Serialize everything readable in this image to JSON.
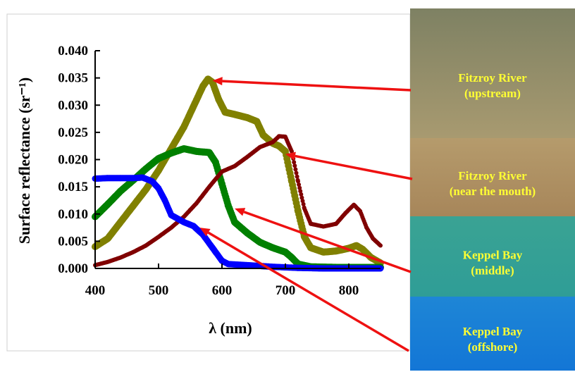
{
  "chart_data": {
    "type": "scatter",
    "xlabel": "λ (nm)",
    "ylabel": "Surface reflectance (sr⁻¹)",
    "xlim": [
      400,
      850
    ],
    "ylim": [
      0,
      0.04
    ],
    "x_ticks": [
      "400",
      "500",
      "600",
      "700",
      "800"
    ],
    "y_ticks": [
      "0.000",
      "0.005",
      "0.010",
      "0.015",
      "0.020",
      "0.025",
      "0.030",
      "0.035",
      "0.040"
    ],
    "grid": false,
    "series": [
      {
        "color": "#808000",
        "points": [
          [
            400,
            0.004
          ],
          [
            420,
            0.0055
          ],
          [
            440,
            0.0085
          ],
          [
            460,
            0.0115
          ],
          [
            480,
            0.0145
          ],
          [
            500,
            0.018
          ],
          [
            520,
            0.022
          ],
          [
            540,
            0.026
          ],
          [
            560,
            0.031
          ],
          [
            570,
            0.0335
          ],
          [
            578,
            0.0348
          ],
          [
            585,
            0.0342
          ],
          [
            595,
            0.031
          ],
          [
            605,
            0.0287
          ],
          [
            620,
            0.0283
          ],
          [
            640,
            0.0277
          ],
          [
            655,
            0.027
          ],
          [
            665,
            0.0245
          ],
          [
            680,
            0.023
          ],
          [
            690,
            0.0225
          ],
          [
            700,
            0.0215
          ],
          [
            710,
            0.016
          ],
          [
            720,
            0.0105
          ],
          [
            730,
            0.0058
          ],
          [
            740,
            0.0038
          ],
          [
            760,
            0.003
          ],
          [
            780,
            0.0032
          ],
          [
            800,
            0.0037
          ],
          [
            812,
            0.0042
          ],
          [
            822,
            0.0035
          ],
          [
            835,
            0.002
          ],
          [
            850,
            0.001
          ]
        ]
      },
      {
        "color": "#008000",
        "points": [
          [
            400,
            0.0095
          ],
          [
            420,
            0.0118
          ],
          [
            440,
            0.0142
          ],
          [
            460,
            0.0162
          ],
          [
            480,
            0.0183
          ],
          [
            500,
            0.0202
          ],
          [
            520,
            0.0212
          ],
          [
            540,
            0.022
          ],
          [
            560,
            0.0215
          ],
          [
            580,
            0.0213
          ],
          [
            590,
            0.0195
          ],
          [
            600,
            0.0155
          ],
          [
            610,
            0.0115
          ],
          [
            620,
            0.0085
          ],
          [
            640,
            0.0065
          ],
          [
            660,
            0.0048
          ],
          [
            680,
            0.0038
          ],
          [
            700,
            0.003
          ],
          [
            710,
            0.002
          ],
          [
            720,
            0.0008
          ],
          [
            740,
            0.0003
          ],
          [
            780,
            0.0002
          ],
          [
            820,
            0.0002
          ],
          [
            850,
            0.0002
          ]
        ]
      },
      {
        "color": "#800000",
        "points": [
          [
            400,
            0.0006
          ],
          [
            420,
            0.0012
          ],
          [
            440,
            0.002
          ],
          [
            460,
            0.003
          ],
          [
            480,
            0.0042
          ],
          [
            500,
            0.0058
          ],
          [
            520,
            0.0075
          ],
          [
            540,
            0.0095
          ],
          [
            560,
            0.012
          ],
          [
            580,
            0.015
          ],
          [
            600,
            0.0178
          ],
          [
            620,
            0.0188
          ],
          [
            640,
            0.0205
          ],
          [
            660,
            0.0223
          ],
          [
            680,
            0.0232
          ],
          [
            690,
            0.0243
          ],
          [
            700,
            0.0242
          ],
          [
            710,
            0.0215
          ],
          [
            720,
            0.016
          ],
          [
            730,
            0.011
          ],
          [
            740,
            0.0082
          ],
          [
            760,
            0.0077
          ],
          [
            780,
            0.0082
          ],
          [
            795,
            0.0102
          ],
          [
            808,
            0.0117
          ],
          [
            818,
            0.0105
          ],
          [
            828,
            0.0075
          ],
          [
            838,
            0.0055
          ],
          [
            850,
            0.0042
          ]
        ]
      },
      {
        "color": "#0000ff",
        "points": [
          [
            400,
            0.0165
          ],
          [
            420,
            0.0166
          ],
          [
            440,
            0.0166
          ],
          [
            460,
            0.0166
          ],
          [
            475,
            0.0167
          ],
          [
            490,
            0.016
          ],
          [
            500,
            0.0147
          ],
          [
            510,
            0.0125
          ],
          [
            520,
            0.0098
          ],
          [
            540,
            0.0085
          ],
          [
            555,
            0.0078
          ],
          [
            570,
            0.0062
          ],
          [
            585,
            0.0038
          ],
          [
            600,
            0.0014
          ],
          [
            610,
            0.0008
          ],
          [
            640,
            0.0006
          ],
          [
            680,
            0.0003
          ],
          [
            720,
            0.0001
          ],
          [
            760,
            0.0
          ],
          [
            800,
            0.0
          ],
          [
            850,
            0.0
          ]
        ]
      }
    ]
  },
  "photos": [
    {
      "line1": "Fitzroy River",
      "line2": "(upstream)",
      "color_top": "#7e8163",
      "color_bottom": "#a89a70",
      "arrow_target": [
        585,
        0.0345
      ]
    },
    {
      "line1": "Fitzroy River",
      "line2": "(near the mouth)",
      "color_top": "#b59b6c",
      "color_bottom": "#a7865a",
      "arrow_target": [
        700,
        0.021
      ]
    },
    {
      "line1": "Keppel Bay",
      "line2": "(middle)",
      "color_top": "#3aa394",
      "color_bottom": "#2f9d96",
      "arrow_target": [
        620,
        0.011
      ]
    },
    {
      "line1": "Keppel Bay",
      "line2": "(offshore)",
      "color_top": "#1e86d6",
      "color_bottom": "#1376d6",
      "arrow_target": [
        565,
        0.0075
      ]
    }
  ],
  "colors": {
    "arrow": "#ee1111"
  }
}
